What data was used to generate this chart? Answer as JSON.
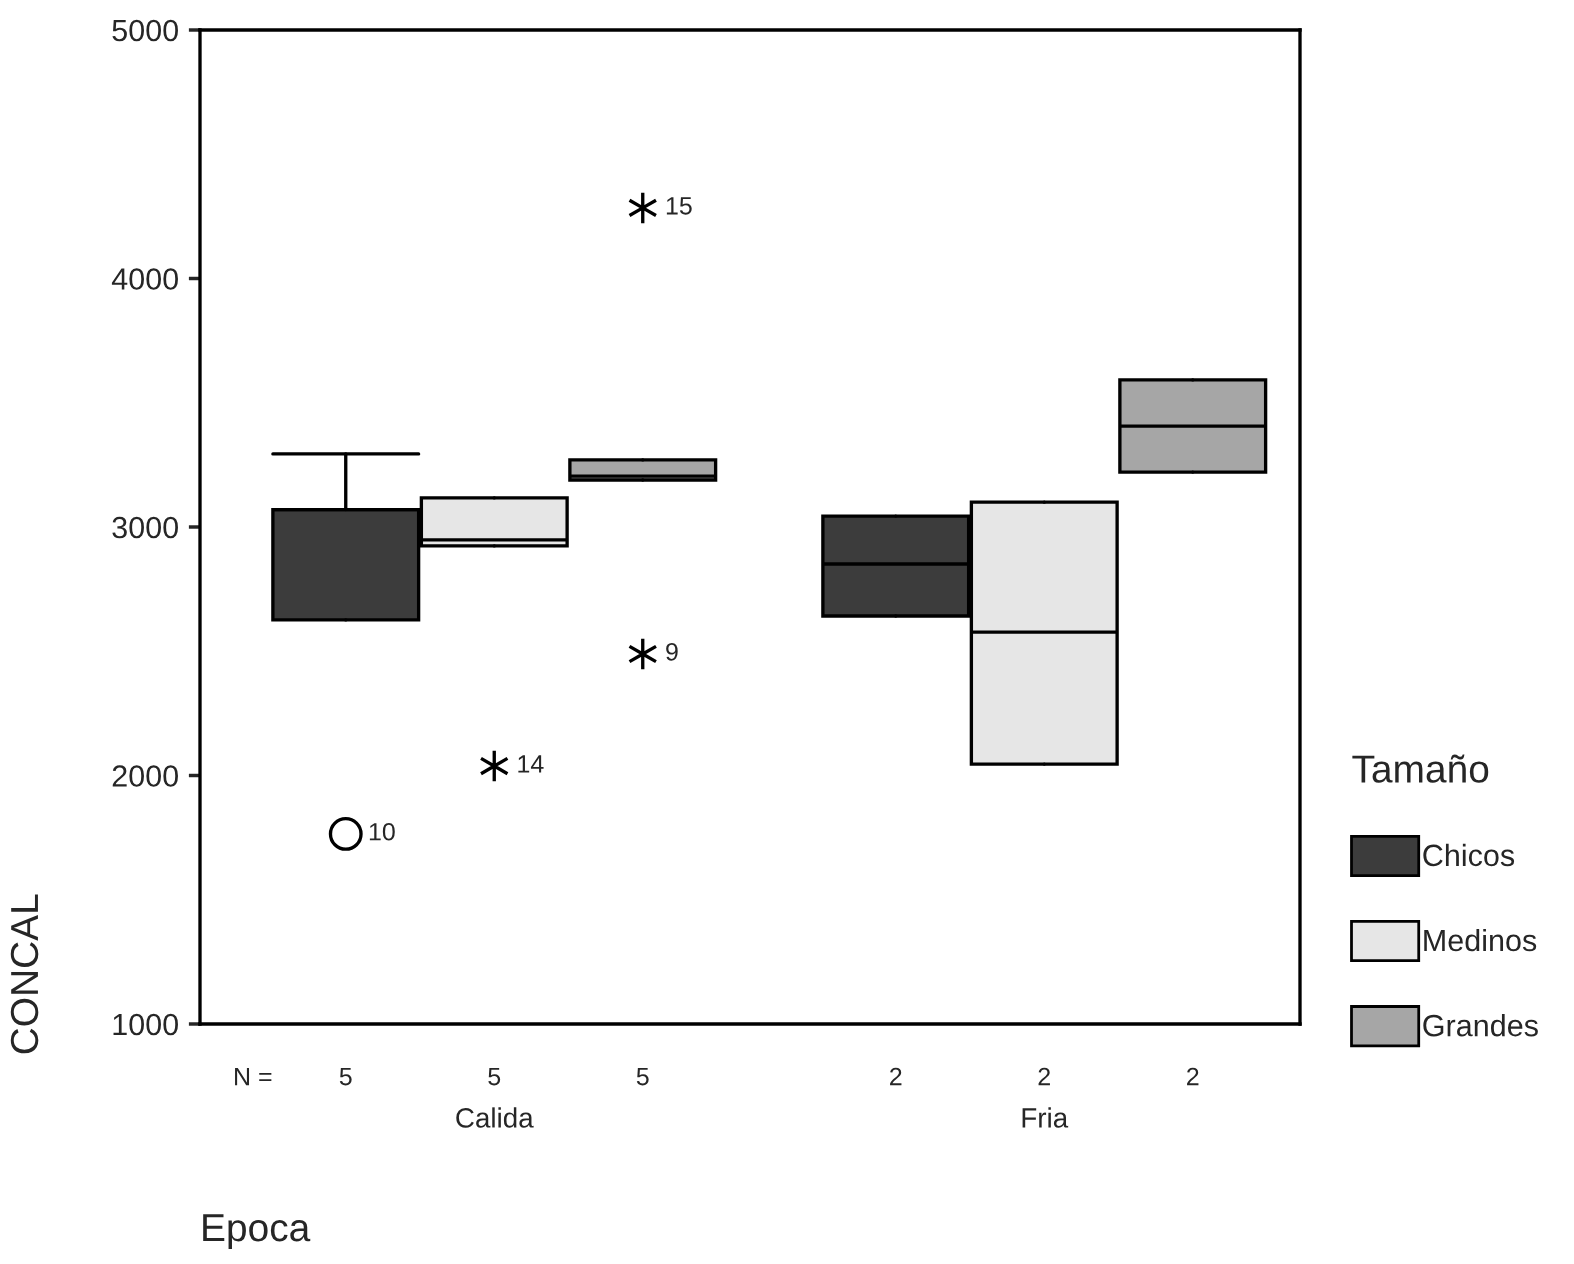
{
  "chart_data": {
    "type": "box",
    "xlabel": "Epoca",
    "ylabel": "CONCAL",
    "legend_title": "Tamaño",
    "categories": [
      "Calida",
      "Fria"
    ],
    "series": [
      {
        "name": "Chicos",
        "color": "#3c3c3c",
        "marker": "circle",
        "value_labels": [
          "5",
          "2"
        ],
        "boxes": [
          {
            "low": 2626,
            "q1": 2626,
            "median": 3070,
            "q3": 3070,
            "high": 3294,
            "outliers": [
              1765
            ]
          },
          {
            "low": 2642,
            "q1": 2642,
            "median": 2851,
            "q3": 3044,
            "high": 3044
          }
        ]
      },
      {
        "name": "Medinos",
        "color": "#e6e6e6",
        "marker": "star",
        "value_labels": [
          "5",
          "2"
        ],
        "boxes": [
          {
            "low": 2924,
            "q1": 2924,
            "median": 2948,
            "q3": 3117,
            "high": 3117,
            "outliers": [
              2038
            ]
          },
          {
            "low": 2046,
            "q1": 2046,
            "median": 2577,
            "q3": 3100,
            "high": 3100
          }
        ]
      },
      {
        "name": "Grandes",
        "color": "#a6a6a6",
        "marker": "star",
        "value_labels": [
          "5",
          "2"
        ],
        "boxes": [
          {
            "low": 3189,
            "q1": 3189,
            "median": 3205,
            "q3": 3270,
            "high": 3270,
            "outliers": [
              4284,
              2489
            ]
          },
          {
            "low": 3221,
            "q1": 3221,
            "median": 3406,
            "q3": 3592,
            "high": 3592
          }
        ]
      }
    ],
    "annotations": [
      "N =",
      "10",
      "14",
      "15",
      "9"
    ],
    "ylim": [
      1000,
      5000
    ],
    "yticks": [
      1000,
      2000,
      3000,
      4000,
      5000
    ],
    "grid": false,
    "legend": "right"
  }
}
